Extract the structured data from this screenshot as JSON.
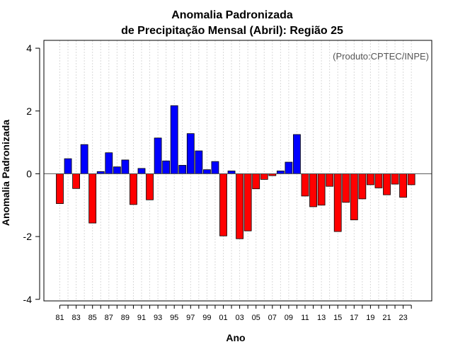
{
  "chart_data": {
    "type": "bar",
    "title_lines": [
      "Anomalia Padronizada",
      "de Precipitação Mensal (Abril): Região 25"
    ],
    "xlabel": "Ano",
    "ylabel": "Anomalia Padronizada",
    "credit": "(Produto:CPTEC/INPE)",
    "ylim": [
      -4,
      4
    ],
    "yticks": [
      "-4",
      "-2",
      "0",
      "2",
      "4"
    ],
    "xtick_labels": [
      "81",
      "83",
      "85",
      "87",
      "89",
      "91",
      "93",
      "95",
      "97",
      "99",
      "01",
      "03",
      "05",
      "07",
      "09",
      "11",
      "13",
      "15",
      "17",
      "19",
      "21",
      "23"
    ],
    "categories": [
      "81",
      "82",
      "83",
      "84",
      "85",
      "86",
      "87",
      "88",
      "89",
      "90",
      "91",
      "92",
      "93",
      "94",
      "95",
      "96",
      "97",
      "98",
      "99",
      "00",
      "01",
      "02",
      "03",
      "04",
      "05",
      "06",
      "07",
      "08",
      "09",
      "10",
      "11",
      "12",
      "13",
      "14",
      "15",
      "16",
      "17",
      "18",
      "19",
      "20",
      "21",
      "22",
      "23",
      "24"
    ],
    "values": [
      -0.95,
      0.48,
      -0.47,
      0.93,
      -1.57,
      0.07,
      0.67,
      0.22,
      0.44,
      -0.98,
      0.17,
      -0.83,
      1.14,
      0.41,
      2.17,
      0.27,
      1.28,
      0.73,
      0.13,
      0.39,
      -1.98,
      0.09,
      -2.07,
      -1.82,
      -0.48,
      -0.18,
      -0.06,
      0.09,
      0.37,
      1.25,
      -0.71,
      -1.05,
      -1.0,
      -0.4,
      -1.84,
      -0.91,
      -1.47,
      -0.8,
      -0.35,
      -0.45,
      -0.67,
      -0.33,
      -0.75,
      -0.35
    ],
    "positive_color": "#0000ff",
    "negative_color": "#ff0000"
  }
}
